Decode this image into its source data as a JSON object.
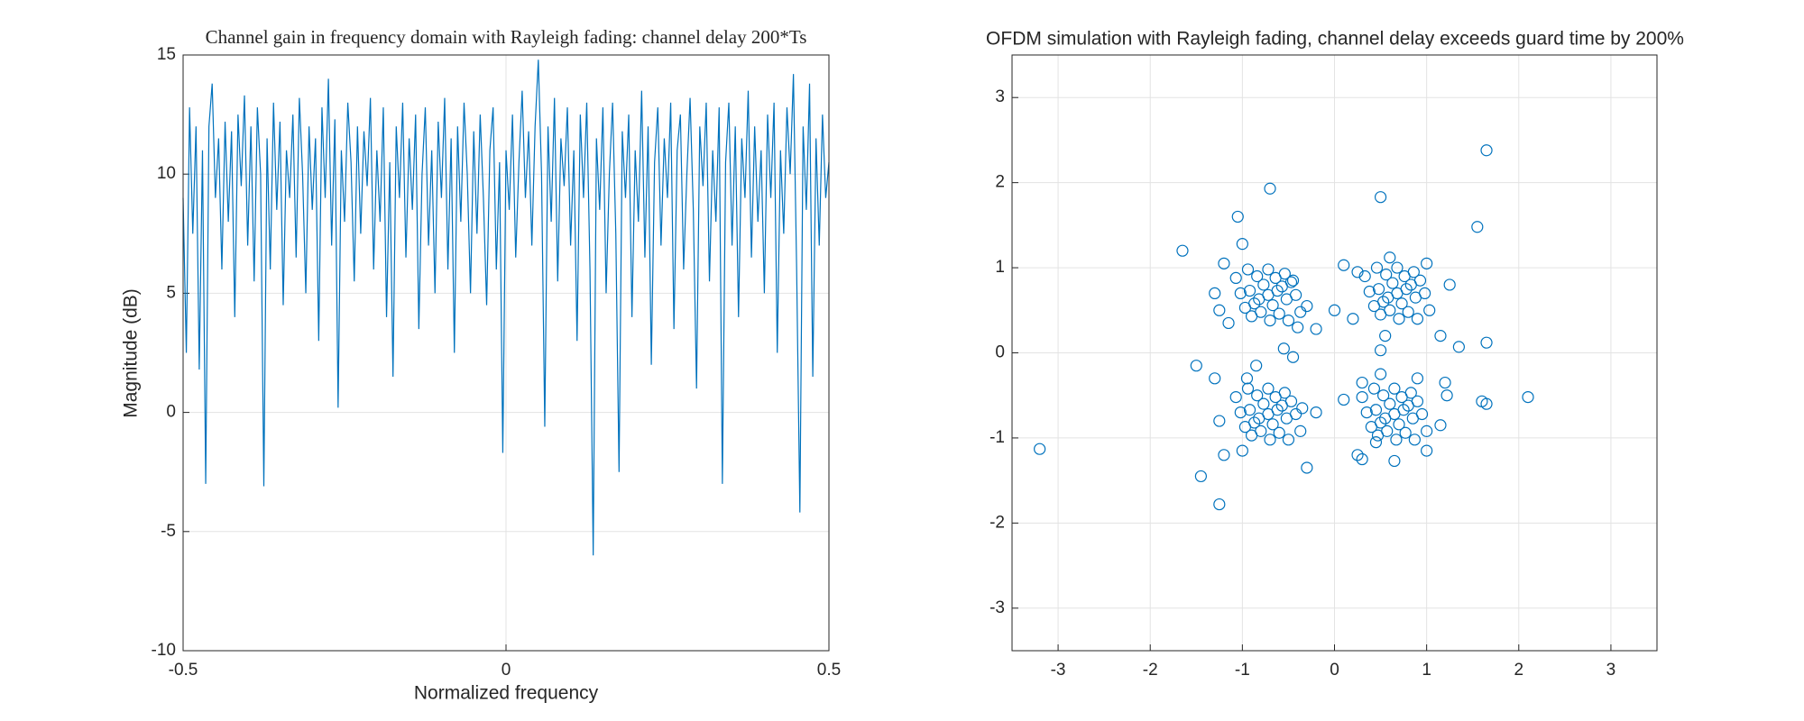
{
  "chart_data": [
    {
      "type": "line",
      "title": "Channel gain in frequency domain with Rayleigh fading: channel delay 200*Ts",
      "xlabel": "Normalized frequency",
      "ylabel": "Magnitude (dB)",
      "color": "#0072BD",
      "grid": true,
      "xlim": [
        -0.5,
        0.5
      ],
      "xticks": [
        -0.5,
        0,
        0.5
      ],
      "ylim": [
        -10,
        15
      ],
      "yticks": [
        -10,
        -5,
        0,
        5,
        10,
        15
      ],
      "x": [
        -0.5,
        -0.495,
        -0.49,
        -0.485,
        -0.48,
        -0.475,
        -0.47,
        -0.465,
        -0.46,
        -0.455,
        -0.45,
        -0.445,
        -0.44,
        -0.435,
        -0.43,
        -0.425,
        -0.42,
        -0.415,
        -0.41,
        -0.405,
        -0.4,
        -0.395,
        -0.39,
        -0.385,
        -0.38,
        -0.375,
        -0.37,
        -0.365,
        -0.36,
        -0.355,
        -0.35,
        -0.345,
        -0.34,
        -0.335,
        -0.33,
        -0.325,
        -0.32,
        -0.315,
        -0.31,
        -0.305,
        -0.3,
        -0.295,
        -0.29,
        -0.285,
        -0.28,
        -0.275,
        -0.27,
        -0.265,
        -0.26,
        -0.255,
        -0.25,
        -0.245,
        -0.24,
        -0.235,
        -0.23,
        -0.225,
        -0.22,
        -0.215,
        -0.21,
        -0.205,
        -0.2,
        -0.195,
        -0.19,
        -0.185,
        -0.18,
        -0.175,
        -0.17,
        -0.165,
        -0.16,
        -0.155,
        -0.15,
        -0.145,
        -0.14,
        -0.135,
        -0.13,
        -0.125,
        -0.12,
        -0.115,
        -0.11,
        -0.105,
        -0.1,
        -0.095,
        -0.09,
        -0.085,
        -0.08,
        -0.075,
        -0.07,
        -0.065,
        -0.06,
        -0.055,
        -0.05,
        -0.045,
        -0.04,
        -0.035,
        -0.03,
        -0.025,
        -0.02,
        -0.015,
        -0.01,
        -0.005,
        0,
        0.005,
        0.01,
        0.015,
        0.02,
        0.025,
        0.03,
        0.035,
        0.04,
        0.045,
        0.05,
        0.055,
        0.06,
        0.065,
        0.07,
        0.075,
        0.08,
        0.085,
        0.09,
        0.095,
        0.1,
        0.105,
        0.11,
        0.115,
        0.12,
        0.125,
        0.13,
        0.135,
        0.14,
        0.145,
        0.15,
        0.155,
        0.16,
        0.165,
        0.17,
        0.175,
        0.18,
        0.185,
        0.19,
        0.195,
        0.2,
        0.205,
        0.21,
        0.215,
        0.22,
        0.225,
        0.23,
        0.235,
        0.24,
        0.245,
        0.25,
        0.255,
        0.26,
        0.265,
        0.27,
        0.275,
        0.28,
        0.285,
        0.29,
        0.295,
        0.3,
        0.305,
        0.31,
        0.315,
        0.32,
        0.325,
        0.33,
        0.335,
        0.34,
        0.345,
        0.35,
        0.355,
        0.36,
        0.365,
        0.37,
        0.375,
        0.38,
        0.385,
        0.39,
        0.395,
        0.4,
        0.405,
        0.41,
        0.415,
        0.42,
        0.425,
        0.43,
        0.435,
        0.44,
        0.445,
        0.45,
        0.455,
        0.46,
        0.465,
        0.47,
        0.475,
        0.48,
        0.485,
        0.49,
        0.495,
        0.5
      ],
      "values": [
        9,
        2.5,
        12.8,
        7.5,
        12,
        1.8,
        11,
        -3,
        12,
        13.8,
        9,
        11.5,
        6,
        12.2,
        8,
        11.8,
        4,
        12.5,
        9.5,
        13.3,
        7,
        12,
        5.5,
        12.8,
        10,
        -3.1,
        11.5,
        6,
        13,
        8.5,
        12.2,
        4.5,
        11,
        9,
        12.5,
        6.5,
        13.2,
        10,
        5,
        12,
        8.5,
        11.5,
        3,
        12.8,
        9,
        14,
        7,
        12.3,
        0.2,
        11,
        8,
        13,
        10.5,
        5.5,
        12,
        7.5,
        11.8,
        9.5,
        13.2,
        6,
        11,
        8,
        12.8,
        4,
        10.5,
        1.5,
        12,
        9,
        13,
        6.5,
        11.5,
        8.5,
        12.5,
        3.5,
        10,
        12.8,
        7,
        11,
        5,
        12.2,
        9,
        13.2,
        6,
        11.5,
        2.5,
        12,
        8,
        13,
        10,
        5,
        11.8,
        7.5,
        12.5,
        9,
        4.5,
        11,
        12.8,
        6,
        10.5,
        -1.7,
        11,
        8.5,
        12.5,
        6.5,
        10.5,
        13.5,
        9,
        11.8,
        7,
        12,
        14.8,
        10,
        -0.6,
        12,
        8,
        13.2,
        5.5,
        11.5,
        9.5,
        12.8,
        7,
        11,
        3,
        12.5,
        9,
        13,
        6,
        -6,
        11.5,
        8.5,
        12.8,
        5,
        10,
        13,
        7.5,
        -2.5,
        11.8,
        9,
        12.5,
        4,
        11,
        8,
        13.5,
        6.5,
        12,
        2,
        10.5,
        12.8,
        7,
        11.5,
        9,
        13,
        3.5,
        11,
        12.5,
        6,
        10,
        13.2,
        8.5,
        1,
        12,
        9.5,
        13,
        5.5,
        11,
        8,
        12.8,
        -3,
        10.5,
        13,
        7,
        12,
        4,
        11.5,
        9,
        13.5,
        6.5,
        12,
        8,
        11,
        5,
        12.5,
        9,
        13,
        2.5,
        11,
        7.5,
        12.8,
        10,
        14.2,
        6,
        -4.2,
        12,
        8.5,
        13.8,
        1.5,
        11.5,
        7,
        12.5,
        9,
        10.5
      ]
    },
    {
      "type": "scatter",
      "title": "OFDM simulation with Rayleigh fading, channel delay exceeds guard time by 200%",
      "color": "#0072BD",
      "grid": true,
      "xlim": [
        -3.5,
        3.5
      ],
      "xticks": [
        -3,
        -2,
        -1,
        0,
        1,
        2,
        3
      ],
      "ylim": [
        -3.5,
        3.5
      ],
      "yticks": [
        -3,
        -2,
        -1,
        0,
        1,
        2,
        3
      ],
      "x": [
        -0.72,
        -0.62,
        -0.82,
        -0.67,
        -0.77,
        -0.57,
        -0.87,
        -0.52,
        -0.92,
        -0.64,
        -0.8,
        -0.47,
        -0.97,
        -0.6,
        -0.84,
        -0.42,
        -1.02,
        -0.72,
        -0.7,
        -0.54,
        -0.9,
        -0.37,
        -1.07,
        -0.5,
        -0.94,
        -1.65,
        -1.05,
        -0.7,
        -1.2,
        -1.0,
        -1.3,
        -0.4,
        -0.55,
        -1.15,
        -0.3,
        -0.45,
        -0.2,
        -1.25,
        0.68,
        0.78,
        0.58,
        0.73,
        0.63,
        0.83,
        0.53,
        0.88,
        0.48,
        0.76,
        0.6,
        0.93,
        0.43,
        0.8,
        0.56,
        0.98,
        0.38,
        0.68,
        0.7,
        0.86,
        0.5,
        1.03,
        0.33,
        0.9,
        0.46,
        0.5,
        1.65,
        1.55,
        0.1,
        0.25,
        1.25,
        0.0,
        0.2,
        0.55,
        1.15,
        1.35,
        1.65,
        0.5,
        0.6,
        1.0,
        -0.72,
        -0.62,
        -0.82,
        -0.67,
        -0.77,
        -0.57,
        -0.87,
        -0.52,
        -0.92,
        -0.64,
        -0.8,
        -0.47,
        -0.97,
        -0.6,
        -0.84,
        -0.42,
        -1.02,
        -0.72,
        -0.7,
        -0.54,
        -0.9,
        -0.37,
        -1.07,
        -0.5,
        -0.94,
        -3.2,
        -1.45,
        -1.25,
        -1.2,
        -1.0,
        -0.3,
        -0.45,
        -0.85,
        -1.5,
        -1.3,
        -0.2,
        -0.35,
        -0.95,
        -1.25,
        0.65,
        0.75,
        0.55,
        0.7,
        0.6,
        0.8,
        0.5,
        0.85,
        0.45,
        0.73,
        0.57,
        0.9,
        0.4,
        0.77,
        0.53,
        0.95,
        0.35,
        0.65,
        0.67,
        0.83,
        0.47,
        1.0,
        0.3,
        0.87,
        0.43,
        2.1,
        1.6,
        1.65,
        1.2,
        1.22,
        1.0,
        0.25,
        0.3,
        0.1,
        0.3,
        0.5,
        0.65,
        0.9,
        1.15,
        0.45
      ],
      "y": [
        0.68,
        0.73,
        0.63,
        0.56,
        0.8,
        0.78,
        0.58,
        0.63,
        0.73,
        0.88,
        0.48,
        0.83,
        0.53,
        0.46,
        0.9,
        0.68,
        0.7,
        0.98,
        0.38,
        0.93,
        0.43,
        0.48,
        0.88,
        0.38,
        0.98,
        1.2,
        1.6,
        1.93,
        1.05,
        1.28,
        0.7,
        0.3,
        0.05,
        0.35,
        0.55,
        0.85,
        0.28,
        0.5,
        0.7,
        0.75,
        0.65,
        0.58,
        0.82,
        0.8,
        0.6,
        0.65,
        0.75,
        0.9,
        0.5,
        0.85,
        0.55,
        0.48,
        0.92,
        0.7,
        0.72,
        1.0,
        0.4,
        0.95,
        0.45,
        0.5,
        0.9,
        0.4,
        1.0,
        1.83,
        2.38,
        1.48,
        1.03,
        0.95,
        0.8,
        0.5,
        0.4,
        0.2,
        0.2,
        0.07,
        0.12,
        0.03,
        1.12,
        1.05,
        -0.72,
        -0.67,
        -0.77,
        -0.84,
        -0.6,
        -0.62,
        -0.82,
        -0.77,
        -0.67,
        -0.52,
        -0.92,
        -0.57,
        -0.87,
        -0.94,
        -0.5,
        -0.72,
        -0.7,
        -0.42,
        -1.02,
        -0.47,
        -0.97,
        -0.92,
        -0.52,
        -1.02,
        -0.42,
        -1.13,
        -1.45,
        -1.78,
        -1.2,
        -1.15,
        -1.35,
        -0.05,
        -0.15,
        -0.15,
        -0.3,
        -0.7,
        -0.65,
        -0.3,
        -0.8,
        -0.72,
        -0.67,
        -0.77,
        -0.84,
        -0.6,
        -0.62,
        -0.82,
        -0.77,
        -0.67,
        -0.52,
        -0.92,
        -0.57,
        -0.87,
        -0.94,
        -0.5,
        -0.72,
        -0.7,
        -0.42,
        -1.02,
        -0.47,
        -0.97,
        -0.92,
        -0.52,
        -1.02,
        -0.42,
        -0.52,
        -0.57,
        -0.6,
        -0.35,
        -0.5,
        -1.15,
        -1.2,
        -1.25,
        -0.55,
        -0.35,
        -0.25,
        -1.27,
        -0.3,
        -0.85,
        -1.05
      ]
    }
  ]
}
